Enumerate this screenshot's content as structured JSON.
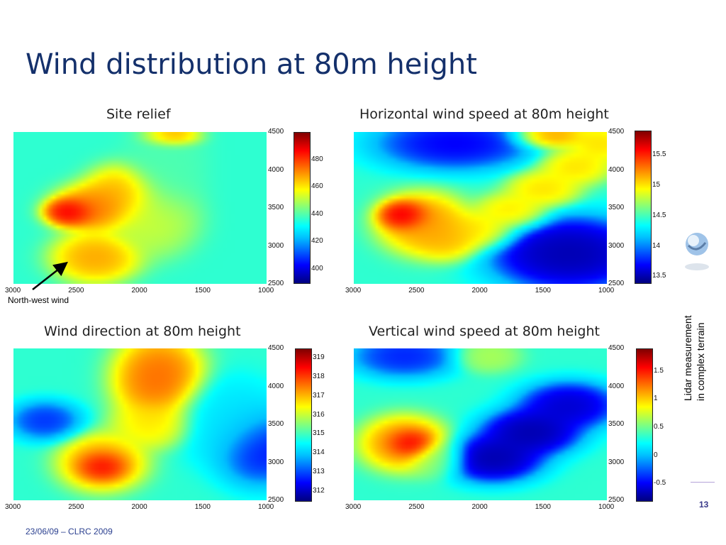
{
  "slide": {
    "title": "Wind distribution at 80m height",
    "footer": "23/06/09 – CLRC 2009",
    "page_number": "13",
    "side_text_line1": "Lidar measurement",
    "side_text_line2": "in complex terrain",
    "annotation": "North-west wind"
  },
  "colors": {
    "title": "#14306b",
    "colormap": [
      "#00007f",
      "#0000ff",
      "#00bfff",
      "#00ffff",
      "#7fff7f",
      "#ffff00",
      "#ff7f00",
      "#ff0000",
      "#7f0000"
    ]
  },
  "chart_data": [
    {
      "type": "heatmap",
      "title": "Site relief",
      "x_ticks": [
        "3000",
        "2500",
        "2000",
        "1500",
        "1000"
      ],
      "y_ticks": [
        "4500",
        "4000",
        "3500",
        "3000",
        "2500"
      ],
      "xlim": [
        3000,
        1000
      ],
      "ylim": [
        2500,
        4500
      ],
      "colorbar_ticks": [
        "480",
        "460",
        "440",
        "420",
        "400"
      ],
      "colorbar_range": [
        390,
        500
      ],
      "features": [
        {
          "x": 2550,
          "y": 3450,
          "value": 495,
          "sx": 140,
          "sy": 130
        },
        {
          "x": 2350,
          "y": 3500,
          "value": 478,
          "sx": 230,
          "sy": 220
        },
        {
          "x": 2150,
          "y": 3700,
          "value": 470,
          "sx": 200,
          "sy": 250
        },
        {
          "x": 2350,
          "y": 2850,
          "value": 472,
          "sx": 240,
          "sy": 230
        },
        {
          "x": 1750,
          "y": 4450,
          "value": 480,
          "sx": 150,
          "sy": 100
        },
        {
          "x": 1900,
          "y": 3350,
          "value": 455,
          "sx": 240,
          "sy": 330
        },
        {
          "x": 1800,
          "y": 4050,
          "value": 440,
          "sx": 220,
          "sy": 500
        }
      ]
    },
    {
      "type": "heatmap",
      "title": "Horizontal wind speed at 80m height",
      "x_ticks": [
        "3000",
        "2500",
        "2000",
        "1500",
        "1000"
      ],
      "y_ticks": [
        "4500",
        "4000",
        "3500",
        "3000",
        "2500"
      ],
      "xlim": [
        3000,
        1000
      ],
      "ylim": [
        2500,
        4500
      ],
      "colorbar_ticks": [
        "15.5",
        "15",
        "14.5",
        "14",
        "13.5"
      ],
      "colorbar_range": [
        13.4,
        15.9
      ],
      "features": [
        {
          "x": 2600,
          "y": 3400,
          "value": 15.9,
          "sx": 140,
          "sy": 140
        },
        {
          "x": 2450,
          "y": 3300,
          "value": 15.3,
          "sx": 250,
          "sy": 280
        },
        {
          "x": 2250,
          "y": 3100,
          "value": 15.2,
          "sx": 200,
          "sy": 200
        },
        {
          "x": 2000,
          "y": 3200,
          "value": 15.1,
          "sx": 200,
          "sy": 170
        },
        {
          "x": 1750,
          "y": 3450,
          "value": 15.1,
          "sx": 200,
          "sy": 170
        },
        {
          "x": 1500,
          "y": 3750,
          "value": 15.1,
          "sx": 200,
          "sy": 170
        },
        {
          "x": 1250,
          "y": 4050,
          "value": 15.1,
          "sx": 200,
          "sy": 170
        },
        {
          "x": 1050,
          "y": 4350,
          "value": 15.1,
          "sx": 180,
          "sy": 170
        },
        {
          "x": 1450,
          "y": 4450,
          "value": 15.3,
          "sx": 200,
          "sy": 120
        },
        {
          "x": 1300,
          "y": 2900,
          "value": 13.4,
          "sx": 450,
          "sy": 350
        },
        {
          "x": 2200,
          "y": 4350,
          "value": 13.6,
          "sx": 450,
          "sy": 250
        }
      ]
    },
    {
      "type": "heatmap",
      "title": "Wind direction at 80m height",
      "x_ticks": [
        "3000",
        "2500",
        "2000",
        "1500",
        "1000"
      ],
      "y_ticks": [
        "4500",
        "4000",
        "3500",
        "3000",
        "2500"
      ],
      "xlim": [
        3000,
        1000
      ],
      "ylim": [
        2500,
        4500
      ],
      "colorbar_ticks": [
        "319",
        "318",
        "317",
        "316",
        "315",
        "314",
        "313",
        "312"
      ],
      "colorbar_range": [
        311.5,
        319.5
      ],
      "features": [
        {
          "x": 2300,
          "y": 2950,
          "value": 319.5,
          "sx": 140,
          "sy": 140
        },
        {
          "x": 2300,
          "y": 3000,
          "value": 317.5,
          "sx": 240,
          "sy": 260
        },
        {
          "x": 1900,
          "y": 3500,
          "value": 316.8,
          "sx": 220,
          "sy": 220
        },
        {
          "x": 1850,
          "y": 4100,
          "value": 318.0,
          "sx": 250,
          "sy": 400
        },
        {
          "x": 2750,
          "y": 3550,
          "value": 312.5,
          "sx": 200,
          "sy": 180
        },
        {
          "x": 1050,
          "y": 3200,
          "value": 312.2,
          "sx": 250,
          "sy": 350
        },
        {
          "x": 1300,
          "y": 3550,
          "value": 314.0,
          "sx": 300,
          "sy": 400
        }
      ]
    },
    {
      "type": "heatmap",
      "title": "Vertical wind speed at 80m height",
      "x_ticks": [
        "3000",
        "2500",
        "2000",
        "1500",
        "1000"
      ],
      "y_ticks": [
        "4500",
        "4000",
        "3500",
        "3000",
        "2500"
      ],
      "xlim": [
        3000,
        1000
      ],
      "ylim": [
        2500,
        4500
      ],
      "colorbar_ticks": [
        "1.5",
        "1",
        "0.5",
        "0",
        "-0.5"
      ],
      "colorbar_range": [
        -0.8,
        1.9
      ],
      "features": [
        {
          "x": 2550,
          "y": 3250,
          "value": 1.9,
          "sx": 130,
          "sy": 130
        },
        {
          "x": 2600,
          "y": 3250,
          "value": 1.3,
          "sx": 240,
          "sy": 250
        },
        {
          "x": 2350,
          "y": 3050,
          "value": 0.6,
          "sx": 160,
          "sy": 180
        },
        {
          "x": 1900,
          "y": 3050,
          "value": -0.8,
          "sx": 280,
          "sy": 220
        },
        {
          "x": 1600,
          "y": 3400,
          "value": -0.8,
          "sx": 280,
          "sy": 220
        },
        {
          "x": 1300,
          "y": 3750,
          "value": -0.7,
          "sx": 280,
          "sy": 220
        },
        {
          "x": 1950,
          "y": 4400,
          "value": 0.7,
          "sx": 180,
          "sy": 150
        },
        {
          "x": 2600,
          "y": 4400,
          "value": -0.5,
          "sx": 300,
          "sy": 200
        }
      ]
    }
  ]
}
